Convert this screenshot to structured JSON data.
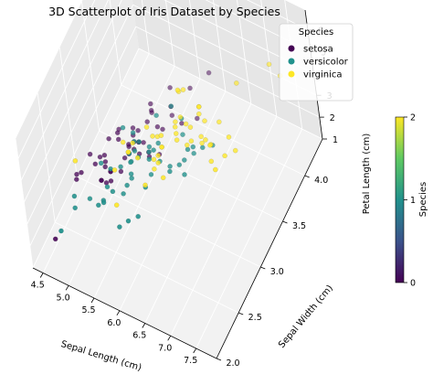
{
  "chart_data": {
    "type": "scatter",
    "title": "3D Scatterplot of Iris Dataset by Species",
    "xlabel": "Sepal Length (cm)",
    "ylabel": "Sepal Width (cm)",
    "zlabel": "Petal Length (cm)",
    "xlim": [
      4.3,
      7.9
    ],
    "ylim": [
      2.0,
      4.4
    ],
    "zlim": [
      1.0,
      6.9
    ],
    "xticks": [
      "4.5",
      "5.0",
      "5.5",
      "6.0",
      "6.5",
      "7.0",
      "7.5",
      "8.0"
    ],
    "yticks": [
      "2.0",
      "2.5",
      "3.0",
      "3.5",
      "4.0",
      "4.5"
    ],
    "zticks": [
      "1",
      "2",
      "3",
      "4",
      "5",
      "6",
      "7"
    ],
    "grid": true,
    "legend": {
      "title": "Species",
      "placement": "top-right",
      "entries": [
        {
          "label": "setosa",
          "color": "#440154"
        },
        {
          "label": "versicolor",
          "color": "#21918c"
        },
        {
          "label": "virginica",
          "color": "#fde725"
        }
      ]
    },
    "colorbar": {
      "label": "Species",
      "ticks": [
        "0",
        "1",
        "2"
      ],
      "colormap": [
        "#440154",
        "#3b528b",
        "#21918c",
        "#5ec962",
        "#fde725"
      ]
    },
    "series": [
      {
        "name": "setosa",
        "x": [
          5.1,
          4.9,
          4.7,
          4.6,
          5.0,
          5.4,
          4.6,
          5.0,
          4.4,
          4.9,
          5.4,
          4.8,
          4.8,
          4.3,
          5.8,
          5.7,
          5.4,
          5.1,
          5.7,
          5.1,
          5.4,
          5.1,
          4.6,
          5.1,
          4.8,
          5.0,
          5.0,
          5.2,
          5.2,
          4.7,
          4.8,
          5.4,
          5.2,
          5.5,
          4.9,
          5.0,
          5.5,
          4.9,
          4.4,
          5.1,
          5.0,
          4.5,
          4.4,
          5.0,
          5.1,
          4.8,
          5.1,
          4.6,
          5.3,
          5.0
        ],
        "y": [
          3.5,
          3.0,
          3.2,
          3.1,
          3.6,
          3.9,
          3.4,
          3.4,
          2.9,
          3.1,
          3.7,
          3.4,
          3.0,
          3.0,
          4.0,
          4.4,
          3.9,
          3.5,
          3.8,
          3.8,
          3.4,
          3.7,
          3.6,
          3.3,
          3.4,
          3.0,
          3.4,
          3.5,
          3.4,
          3.2,
          3.1,
          3.4,
          4.1,
          4.2,
          3.1,
          3.2,
          3.5,
          3.6,
          3.0,
          3.4,
          3.5,
          2.3,
          3.2,
          3.5,
          3.8,
          3.0,
          3.8,
          3.2,
          3.7,
          3.3
        ],
        "z": [
          1.4,
          1.4,
          1.3,
          1.5,
          1.4,
          1.7,
          1.4,
          1.5,
          1.4,
          1.5,
          1.5,
          1.6,
          1.4,
          1.1,
          1.2,
          1.5,
          1.3,
          1.4,
          1.7,
          1.5,
          1.7,
          1.5,
          1.0,
          1.7,
          1.9,
          1.6,
          1.6,
          1.5,
          1.4,
          1.6,
          1.6,
          1.5,
          1.5,
          1.4,
          1.5,
          1.2,
          1.3,
          1.4,
          1.3,
          1.5,
          1.3,
          1.3,
          1.3,
          1.6,
          1.9,
          1.4,
          1.6,
          1.4,
          1.5,
          1.4
        ]
      },
      {
        "name": "versicolor",
        "x": [
          7.0,
          6.4,
          6.9,
          5.5,
          6.5,
          5.7,
          6.3,
          4.9,
          6.6,
          5.2,
          5.0,
          5.9,
          6.0,
          6.1,
          5.6,
          6.7,
          5.6,
          5.8,
          6.2,
          5.6,
          5.9,
          6.1,
          6.3,
          6.1,
          6.4,
          6.6,
          6.8,
          6.7,
          6.0,
          5.7,
          5.5,
          5.5,
          5.8,
          6.0,
          5.4,
          6.0,
          6.7,
          6.3,
          5.6,
          5.5,
          5.5,
          6.1,
          5.8,
          5.0,
          5.6,
          5.7,
          5.7,
          6.2,
          5.1,
          5.7
        ],
        "y": [
          3.2,
          3.2,
          3.1,
          2.3,
          2.8,
          2.8,
          3.3,
          2.4,
          2.9,
          2.7,
          2.0,
          3.0,
          2.2,
          2.9,
          2.9,
          3.1,
          3.0,
          2.7,
          2.2,
          2.5,
          3.2,
          2.8,
          2.5,
          2.8,
          2.9,
          3.0,
          2.8,
          3.0,
          2.9,
          2.6,
          2.4,
          2.4,
          2.7,
          2.7,
          3.0,
          3.4,
          3.1,
          2.3,
          3.0,
          2.5,
          2.6,
          3.0,
          2.6,
          2.3,
          2.7,
          3.0,
          2.9,
          2.9,
          2.5,
          2.8
        ],
        "z": [
          4.7,
          4.5,
          4.9,
          4.0,
          4.6,
          4.5,
          4.7,
          3.3,
          4.6,
          3.9,
          3.5,
          4.2,
          4.0,
          4.7,
          3.6,
          4.4,
          4.5,
          4.1,
          4.5,
          3.9,
          4.8,
          4.0,
          4.9,
          4.7,
          4.3,
          4.4,
          4.8,
          5.0,
          4.5,
          3.5,
          3.8,
          3.7,
          3.9,
          5.1,
          4.5,
          4.5,
          4.7,
          4.4,
          4.1,
          4.0,
          4.4,
          4.6,
          4.0,
          3.3,
          4.2,
          4.2,
          4.2,
          4.3,
          3.0,
          4.1
        ]
      },
      {
        "name": "virginica",
        "x": [
          6.3,
          5.8,
          7.1,
          6.3,
          6.5,
          7.6,
          4.9,
          7.3,
          6.7,
          7.2,
          6.5,
          6.4,
          6.8,
          5.7,
          5.8,
          6.4,
          6.5,
          7.7,
          7.7,
          6.0,
          6.9,
          5.6,
          7.7,
          6.3,
          6.7,
          7.2,
          6.2,
          6.1,
          6.4,
          7.2,
          7.4,
          7.9,
          6.4,
          6.3,
          6.1,
          7.7,
          6.3,
          6.4,
          6.0,
          6.9,
          6.7,
          6.9,
          5.8,
          6.8,
          6.7,
          6.7,
          6.3,
          6.5,
          6.2,
          5.9
        ],
        "y": [
          3.3,
          2.7,
          3.0,
          2.9,
          3.0,
          3.0,
          2.5,
          2.9,
          2.5,
          3.6,
          3.2,
          2.7,
          3.0,
          2.5,
          2.8,
          3.2,
          3.0,
          3.8,
          2.6,
          2.2,
          3.2,
          2.8,
          2.8,
          2.7,
          3.3,
          3.2,
          2.8,
          3.0,
          2.8,
          3.0,
          2.8,
          3.8,
          2.8,
          2.8,
          2.6,
          3.0,
          3.4,
          3.1,
          3.0,
          3.1,
          3.1,
          3.1,
          2.7,
          3.2,
          3.3,
          3.0,
          2.5,
          3.0,
          3.4,
          3.0
        ],
        "z": [
          6.0,
          5.1,
          5.9,
          5.6,
          5.8,
          6.6,
          4.5,
          6.3,
          5.8,
          6.1,
          5.1,
          5.3,
          5.5,
          5.0,
          5.1,
          5.3,
          5.5,
          6.7,
          6.9,
          5.0,
          5.7,
          4.9,
          6.7,
          4.9,
          5.7,
          6.0,
          4.8,
          4.9,
          5.6,
          5.8,
          6.1,
          6.4,
          5.6,
          5.1,
          5.6,
          6.1,
          5.6,
          5.5,
          4.8,
          5.4,
          5.6,
          5.1,
          5.1,
          5.9,
          5.7,
          5.2,
          5.0,
          5.2,
          5.4,
          5.1
        ]
      }
    ]
  }
}
